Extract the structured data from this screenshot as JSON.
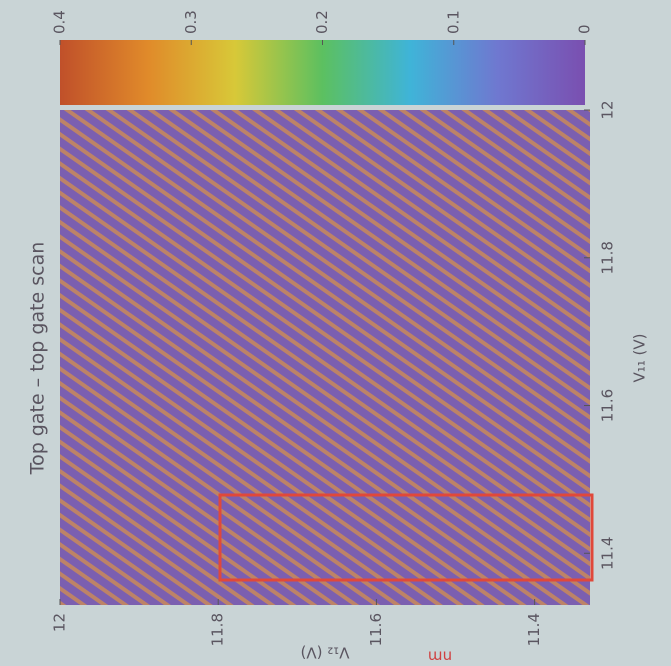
{
  "chart_data": {
    "type": "heatmap",
    "title": "Top gate – top gate scan",
    "x_label": "V₁₁ (V)",
    "y_label": "V₁₂ (V)",
    "xlim": [
      11.33,
      12
    ],
    "xticks": [
      11.4,
      11.6,
      11.8,
      12
    ],
    "ylim": [
      11.33,
      12
    ],
    "yticks": [
      11.4,
      11.6,
      11.8,
      12
    ],
    "colorbar": {
      "lim": [
        0,
        0.4
      ],
      "ticks": [
        0,
        0.1,
        0.2,
        0.3,
        0.4
      ],
      "colors": [
        "#7a4fb0",
        "#6f78d0",
        "#3fb4d8",
        "#5cc060",
        "#d8c838",
        "#e08a2a",
        "#c0502a"
      ]
    },
    "cell_color": "#7b5fb0",
    "stripe_color": "#c98a5a",
    "annotations": [
      "nm"
    ]
  }
}
